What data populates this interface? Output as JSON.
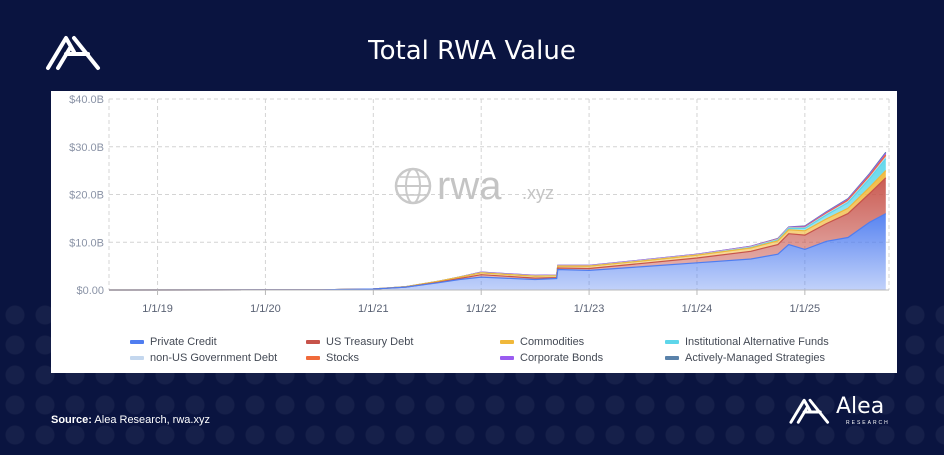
{
  "page": {
    "title": "Total RWA Value",
    "source_label": "Source:",
    "source_text": "Alea Research, rwa.xyz",
    "brand_name": "Alea",
    "brand_sub": "RESEARCH",
    "watermark": "rwa",
    "watermark_suffix": ".xyz"
  },
  "chart_data": {
    "type": "area",
    "stacked": true,
    "title": "Total RWA Value",
    "xlabel": "",
    "ylabel": "",
    "ylim": [
      0,
      40
    ],
    "y_unit": "B",
    "yticks": [
      "$0.00",
      "$10.0B",
      "$20.0B",
      "$30.0B",
      "$40.0B"
    ],
    "ytick_values": [
      0,
      10,
      20,
      30,
      40
    ],
    "xlim": [
      2018.55,
      2025.78
    ],
    "xticks": [
      "1/1/19",
      "1/1/20",
      "1/1/21",
      "1/1/22",
      "1/1/23",
      "1/1/24",
      "1/1/25"
    ],
    "xtick_values": [
      2019,
      2020,
      2021,
      2022,
      2023,
      2024,
      2025
    ],
    "grid": true,
    "legend_position": "bottom",
    "x": [
      2018.55,
      2020.5,
      2021.0,
      2021.3,
      2021.6,
      2021.8,
      2022.0,
      2022.5,
      2022.7,
      2022.71,
      2023.0,
      2023.5,
      2024.0,
      2024.5,
      2024.75,
      2024.85,
      2025.0,
      2025.2,
      2025.4,
      2025.6,
      2025.75
    ],
    "series": [
      {
        "name": "Private Credit",
        "color": "#4f7df0",
        "values": [
          0,
          0.05,
          0.2,
          0.6,
          1.5,
          2.2,
          2.7,
          2.2,
          2.4,
          4.3,
          4.1,
          4.9,
          5.7,
          6.5,
          7.5,
          9.5,
          8.5,
          10.2,
          11.0,
          14.2,
          16.0
        ]
      },
      {
        "name": "US Treasury Debt",
        "color": "#c7534a",
        "values": [
          0,
          0,
          0,
          0,
          0.1,
          0.2,
          0.5,
          0.3,
          0.2,
          0.3,
          0.4,
          0.7,
          1.0,
          1.6,
          2.0,
          2.3,
          3.0,
          3.7,
          5.0,
          6.0,
          7.5
        ]
      },
      {
        "name": "Commodities",
        "color": "#f0b83a",
        "values": [
          0,
          0,
          0,
          0.1,
          0.2,
          0.3,
          0.4,
          0.4,
          0.4,
          0.4,
          0.5,
          0.5,
          0.6,
          0.7,
          0.8,
          0.8,
          0.9,
          1.0,
          1.1,
          1.3,
          1.5
        ]
      },
      {
        "name": "Institutional Alternative Funds",
        "color": "#5ed6ea",
        "values": [
          0,
          0,
          0,
          0,
          0,
          0,
          0,
          0,
          0,
          0,
          0,
          0,
          0,
          0.1,
          0.2,
          0.3,
          0.5,
          0.8,
          1.2,
          1.8,
          2.5
        ]
      },
      {
        "name": "non-US Government Debt",
        "color": "#c4d7ee",
        "values": [
          0,
          0,
          0,
          0,
          0,
          0,
          0.05,
          0.05,
          0.05,
          0.05,
          0.05,
          0.1,
          0.1,
          0.1,
          0.1,
          0.1,
          0.15,
          0.2,
          0.2,
          0.25,
          0.3
        ]
      },
      {
        "name": "Stocks",
        "color": "#f06a3a",
        "values": [
          0,
          0,
          0,
          0,
          0,
          0,
          0,
          0,
          0,
          0,
          0,
          0,
          0,
          0.05,
          0.05,
          0.05,
          0.1,
          0.2,
          0.3,
          0.4,
          0.5
        ]
      },
      {
        "name": "Corporate Bonds",
        "color": "#9a5cf0",
        "values": [
          0,
          0,
          0,
          0,
          0,
          0.05,
          0.1,
          0.1,
          0.1,
          0.1,
          0.1,
          0.1,
          0.1,
          0.1,
          0.1,
          0.1,
          0.15,
          0.2,
          0.2,
          0.25,
          0.3
        ]
      },
      {
        "name": "Actively-Managed Strategies",
        "color": "#5a82aa",
        "values": [
          0,
          0,
          0,
          0,
          0,
          0,
          0,
          0,
          0,
          0,
          0,
          0,
          0,
          0.02,
          0.05,
          0.05,
          0.1,
          0.1,
          0.15,
          0.2,
          0.25
        ]
      }
    ]
  }
}
